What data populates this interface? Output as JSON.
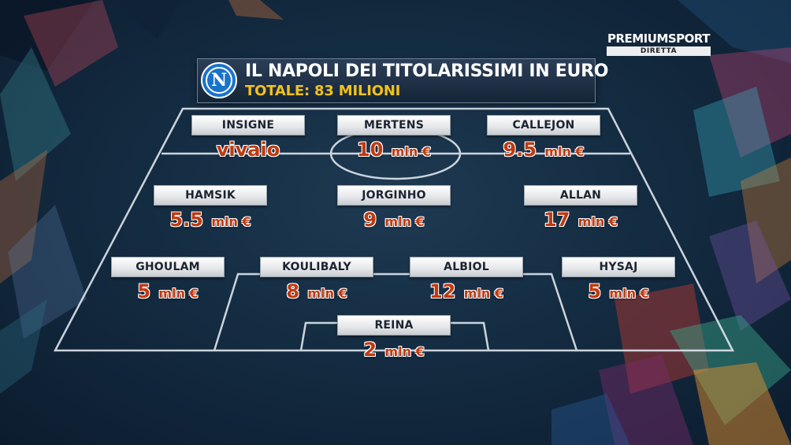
{
  "channel": {
    "name": "PREMIUMSPORT",
    "status": "DIRETTA"
  },
  "banner": {
    "title": "IL NAPOLI DEI TITOLARISSIMI IN EURO",
    "subtitle": "TOTALE: 83 MILIONI",
    "crest_letter": "N"
  },
  "unit": "mln €",
  "players": {
    "insigne": {
      "name": "INSIGNE",
      "value": "vivaio"
    },
    "mertens": {
      "name": "MERTENS",
      "value": "10"
    },
    "callejon": {
      "name": "CALLEJON",
      "value": "9.5"
    },
    "hamsik": {
      "name": "HAMSIK",
      "value": "5.5"
    },
    "jorginho": {
      "name": "JORGINHO",
      "value": "9"
    },
    "allan": {
      "name": "ALLAN",
      "value": "17"
    },
    "ghoulam": {
      "name": "GHOULAM",
      "value": "5"
    },
    "koulibaly": {
      "name": "KOULIBALY",
      "value": "8"
    },
    "albiol": {
      "name": "ALBIOL",
      "value": "12"
    },
    "hysaj": {
      "name": "HYSAJ",
      "value": "5"
    },
    "reina": {
      "name": "REINA",
      "value": "2"
    }
  },
  "colors": {
    "background": "#142c42",
    "title_text": "#ffffff",
    "subtitle_text": "#f2c21a",
    "value_text": "#c0390f",
    "crest_blue": "#1a73c9"
  }
}
